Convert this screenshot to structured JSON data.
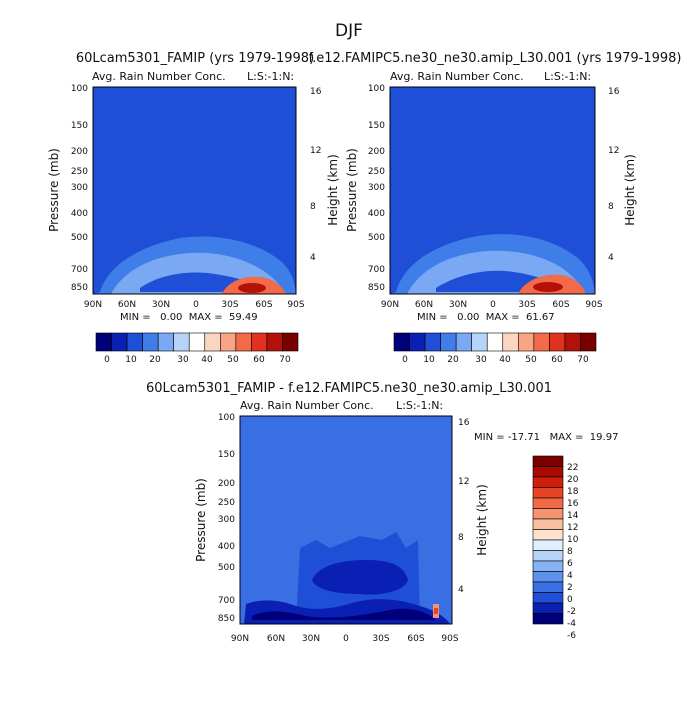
{
  "figure": {
    "title": "DJF",
    "panel1_title": "60Lcam5301_FAMIP (yrs 1979-1998)",
    "panel2_title": "f.e12.FAMIPC5.ne30_ne30.amip_L30.001 (yrs 1979-1998)",
    "panel3_title": "60Lcam5301_FAMIP - f.e12.FAMIPC5.ne30_ne30.amip_L30.001"
  },
  "chart_data": [
    {
      "type": "heatmap",
      "title": "Avg. Rain Number Conc.",
      "subtitle": "L:S:-1:N:",
      "xlabel": "",
      "ylabel": "Pressure (mb)",
      "y2label": "Height (km)",
      "x_ticks": [
        "90N",
        "60N",
        "30N",
        "0",
        "30S",
        "60S",
        "90S"
      ],
      "y_ticks": [
        100,
        150,
        200,
        250,
        300,
        400,
        500,
        700,
        850
      ],
      "y2_ticks": [
        16,
        12,
        8,
        4
      ],
      "stats": "MIN =   0.00  MAX =  59.49",
      "min": 0.0,
      "max": 59.49,
      "colorbar": {
        "orientation": "horizontal",
        "levels": [
          0,
          10,
          20,
          30,
          40,
          50,
          60,
          70
        ]
      }
    },
    {
      "type": "heatmap",
      "title": "Avg. Rain Number Conc.",
      "subtitle": "L:S:-1:N:",
      "xlabel": "",
      "ylabel": "Pressure (mb)",
      "y2label": "Height (km)",
      "x_ticks": [
        "90N",
        "60N",
        "30N",
        "0",
        "30S",
        "60S",
        "90S"
      ],
      "y_ticks": [
        100,
        150,
        200,
        250,
        300,
        400,
        500,
        700,
        850
      ],
      "y2_ticks": [
        16,
        12,
        8,
        4
      ],
      "stats": "MIN =   0.00  MAX =  61.67",
      "min": 0.0,
      "max": 61.67,
      "colorbar": {
        "orientation": "horizontal",
        "levels": [
          0,
          10,
          20,
          30,
          40,
          50,
          60,
          70
        ]
      }
    },
    {
      "type": "heatmap",
      "title": "Avg. Rain Number Conc.",
      "subtitle": "L:S:-1:N:",
      "xlabel": "",
      "ylabel": "Pressure (mb)",
      "y2label": "Height (km)",
      "x_ticks": [
        "90N",
        "60N",
        "30N",
        "0",
        "30S",
        "60S",
        "90S"
      ],
      "y_ticks": [
        100,
        150,
        200,
        250,
        300,
        400,
        500,
        700,
        850
      ],
      "y2_ticks": [
        16,
        12,
        8,
        4
      ],
      "stats": "MIN = -17.71   MAX =  19.97",
      "min": -17.71,
      "max": 19.97,
      "colorbar": {
        "orientation": "vertical",
        "levels": [
          22,
          20,
          18,
          16,
          14,
          12,
          10,
          8,
          6,
          4,
          2,
          0,
          -2,
          -4,
          -6
        ]
      }
    }
  ],
  "colors": {
    "abs_scale": [
      "#00007a",
      "#0a1fb4",
      "#1e4fd6",
      "#3f7de8",
      "#7aa8f2",
      "#b6d3f8",
      "#ffffff",
      "#fcd5c1",
      "#f9a484",
      "#f26a47",
      "#e0321e",
      "#b41208",
      "#7a0000"
    ],
    "diff_scale": [
      "#00007a",
      "#0a1fb4",
      "#1e4fd6",
      "#3a6fe4",
      "#5c92ec",
      "#86b3f3",
      "#b6d3f8",
      "#e1eefc",
      "#fde3cf",
      "#f9c0a0",
      "#f59270",
      "#f06a45",
      "#e84322",
      "#cf1f0a",
      "#a80a00",
      "#7a0000"
    ]
  }
}
